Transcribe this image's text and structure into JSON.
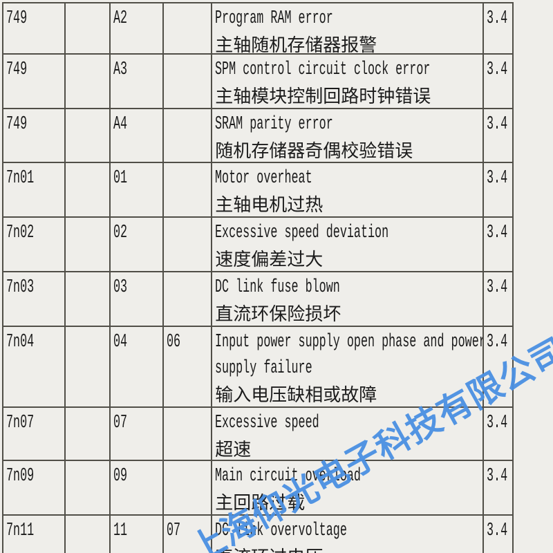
{
  "page": {
    "background_color": "#efeeea",
    "grid_color": "#504e47",
    "text_color": "#1b1b1b"
  },
  "watermark": {
    "text": "上海仰光电子科技有限公司",
    "color": "#4a90e2"
  },
  "table": {
    "rows": [
      {
        "code": "749",
        "blank1": "",
        "alarm": "A2",
        "blank2": "",
        "desc_en_lines": [
          "Program RAM error"
        ],
        "desc_zh": "主轴随机存储器报警",
        "ref": "3.4"
      },
      {
        "code": "749",
        "blank1": "",
        "alarm": "A3",
        "blank2": "",
        "desc_en_lines": [
          "SPM control circuit clock error"
        ],
        "desc_zh": "主轴模块控制回路时钟错误",
        "ref": "3.4"
      },
      {
        "code": "749",
        "blank1": "",
        "alarm": "A4",
        "blank2": "",
        "desc_en_lines": [
          "SRAM parity error"
        ],
        "desc_zh": "随机存储器奇偶校验错误",
        "ref": "3.4"
      },
      {
        "code": "7n01",
        "blank1": "",
        "alarm": "01",
        "blank2": "",
        "desc_en_lines": [
          "Motor overheat"
        ],
        "desc_zh": "主轴电机过热",
        "ref": "3.4"
      },
      {
        "code": "7n02",
        "blank1": "",
        "alarm": "02",
        "blank2": "",
        "desc_en_lines": [
          "Excessive speed deviation"
        ],
        "desc_zh": "速度偏差过大",
        "ref": "3.4"
      },
      {
        "code": "7n03",
        "blank1": "",
        "alarm": "03",
        "blank2": "",
        "desc_en_lines": [
          "DC link fuse blown"
        ],
        "desc_zh": "直流环保险损坏",
        "ref": "3.4"
      },
      {
        "code": "7n04",
        "blank1": "",
        "alarm": "04",
        "blank2": "06",
        "desc_en_lines": [
          "Input power supply open phase and power",
          "supply failure"
        ],
        "desc_zh": "输入电压缺相或故障",
        "ref": "3.4"
      },
      {
        "code": "7n07",
        "blank1": "",
        "alarm": "07",
        "blank2": "",
        "desc_en_lines": [
          "Excessive speed"
        ],
        "desc_zh": "超速",
        "ref": "3.4"
      },
      {
        "code": "7n09",
        "blank1": "",
        "alarm": "09",
        "blank2": "",
        "desc_en_lines": [
          "Main circuit overload"
        ],
        "desc_zh": "主回路过载",
        "ref": "3.4"
      },
      {
        "code": "7n11",
        "blank1": "",
        "alarm": "11",
        "blank2": "07",
        "desc_en_lines": [
          "DC link overvoltage"
        ],
        "desc_zh": "直流环过电压",
        "ref": "3.4"
      }
    ]
  }
}
